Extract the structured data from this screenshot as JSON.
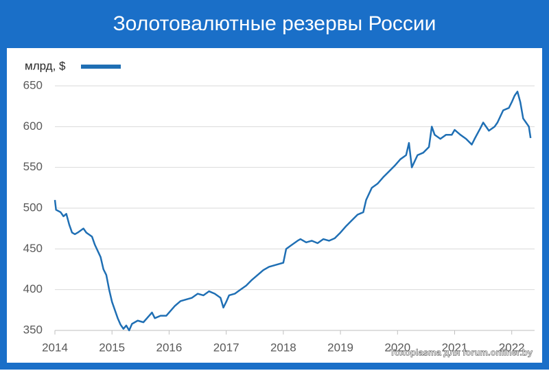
{
  "chart_data": {
    "type": "line",
    "title": "Золотовалютные резервы России",
    "watermark": "Toxoplasma для forum.onliner.by",
    "x": [
      2014.0,
      2014.02,
      2014.1,
      2014.15,
      2014.2,
      2014.25,
      2014.3,
      2014.35,
      2014.4,
      2014.5,
      2014.55,
      2014.65,
      2014.7,
      2014.8,
      2014.85,
      2014.9,
      2014.95,
      2015.0,
      2015.05,
      2015.1,
      2015.15,
      2015.2,
      2015.25,
      2015.3,
      2015.35,
      2015.45,
      2015.55,
      2015.65,
      2015.7,
      2015.75,
      2015.85,
      2015.95,
      2016.0,
      2016.1,
      2016.2,
      2016.3,
      2016.4,
      2016.5,
      2016.6,
      2016.7,
      2016.8,
      2016.9,
      2016.95,
      2017.0,
      2017.05,
      2017.15,
      2017.25,
      2017.35,
      2017.45,
      2017.55,
      2017.65,
      2017.75,
      2017.85,
      2017.95,
      2018.0,
      2018.05,
      2018.15,
      2018.25,
      2018.3,
      2018.4,
      2018.5,
      2018.6,
      2018.7,
      2018.8,
      2018.9,
      2019.0,
      2019.1,
      2019.2,
      2019.3,
      2019.4,
      2019.45,
      2019.55,
      2019.65,
      2019.75,
      2019.85,
      2019.95,
      2020.05,
      2020.15,
      2020.2,
      2020.25,
      2020.35,
      2020.45,
      2020.55,
      2020.6,
      2020.65,
      2020.75,
      2020.85,
      2020.95,
      2021.0,
      2021.1,
      2021.2,
      2021.3,
      2021.35,
      2021.45,
      2021.5,
      2021.6,
      2021.7,
      2021.75,
      2021.85,
      2021.95,
      2022.0,
      2022.05,
      2022.1,
      2022.15,
      2022.2,
      2022.25,
      2022.3,
      2022.33
    ],
    "series": [
      {
        "name": "млрд, $",
        "color": "#1f6fb4",
        "values": [
          510,
          498,
          495,
          490,
          493,
          480,
          470,
          468,
          470,
          475,
          470,
          465,
          455,
          440,
          425,
          418,
          400,
          385,
          375,
          365,
          357,
          352,
          356,
          350,
          358,
          362,
          360,
          368,
          372,
          365,
          368,
          368,
          372,
          380,
          386,
          388,
          390,
          395,
          393,
          398,
          395,
          390,
          378,
          385,
          393,
          395,
          400,
          405,
          412,
          418,
          424,
          428,
          430,
          432,
          433,
          450,
          455,
          460,
          462,
          458,
          460,
          457,
          462,
          460,
          463,
          470,
          478,
          485,
          492,
          495,
          510,
          525,
          530,
          538,
          545,
          552,
          560,
          565,
          580,
          550,
          565,
          568,
          575,
          600,
          590,
          585,
          590,
          590,
          596,
          590,
          585,
          578,
          585,
          598,
          605,
          595,
          600,
          605,
          620,
          623,
          630,
          638,
          643,
          630,
          610,
          605,
          600,
          586
        ]
      }
    ],
    "xlim": [
      2014,
      2022.4
    ],
    "xticks": [
      2014,
      2015,
      2016,
      2017,
      2018,
      2019,
      2020,
      2021,
      2022
    ],
    "ylim": [
      350,
      650
    ],
    "yticks": [
      350,
      400,
      450,
      500,
      550,
      600,
      650
    ],
    "grid": true
  }
}
